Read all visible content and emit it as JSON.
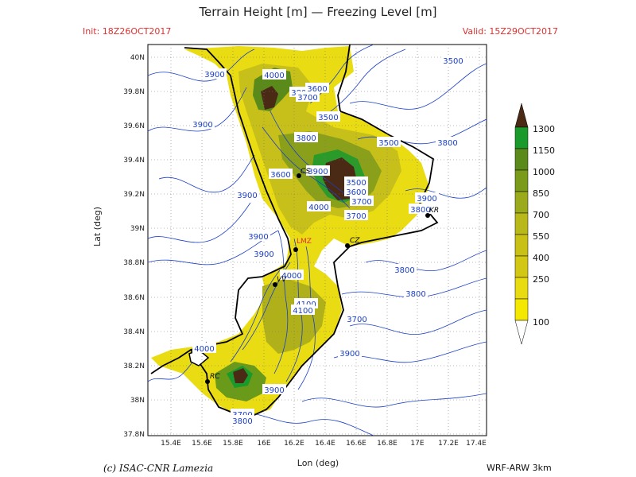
{
  "header": {
    "title": "Terrain Height [m] — Freezing Level [m]",
    "init": "Init: 18Z26OCT2017",
    "valid": "Valid: 15Z29OCT2017"
  },
  "axes": {
    "xlabel": "Lon (deg)",
    "ylabel": "Lat (deg)",
    "x_ticks": [
      "15.4E",
      "15.6E",
      "15.8E",
      "16E",
      "16.2E",
      "16.4E",
      "16.6E",
      "16.8E",
      "17E",
      "17.2E",
      "17.4E"
    ],
    "y_ticks": [
      "40N",
      "39.8N",
      "39.6N",
      "39.4N",
      "39.2N",
      "39N",
      "38.8N",
      "38.6N",
      "38.4N",
      "38.2N",
      "38N",
      "37.8N"
    ]
  },
  "legend": {
    "items": [
      {
        "label": "1300",
        "color": "#4a2a14"
      },
      {
        "label": "1150",
        "color": "#1a9a2a"
      },
      {
        "label": "1000",
        "color": "#5a8a1a"
      },
      {
        "label": "850",
        "color": "#7a9a1a"
      },
      {
        "label": "700",
        "color": "#9aaa1a"
      },
      {
        "label": "550",
        "color": "#b8b81a"
      },
      {
        "label": "400",
        "color": "#d2c814"
      },
      {
        "label": "250",
        "color": "#e8dc10"
      },
      {
        "label": "100",
        "color": "#f4e800"
      }
    ]
  },
  "contour_labels": [
    "3900",
    "4000",
    "3900",
    "3800",
    "3700",
    "3600",
    "3500",
    "3800",
    "3500",
    "3900",
    "3600",
    "3900",
    "3500",
    "3600",
    "3700",
    "3700",
    "4000",
    "3900",
    "3800",
    "3900",
    "3800",
    "3900",
    "4000",
    "4100",
    "4100",
    "3700",
    "3800",
    "3800",
    "3900",
    "4000",
    "3700",
    "3900",
    "3800",
    "3500"
  ],
  "cities": [
    {
      "name": "CS"
    },
    {
      "name": "KR"
    },
    {
      "name": "CZ"
    },
    {
      "name": "VV"
    },
    {
      "name": "RC"
    },
    {
      "name": "LMZ"
    }
  ],
  "footer": {
    "credit": "(c) ISAC-CNR Lamezia",
    "model": "WRF-ARW 3km"
  },
  "colors": {
    "contour": "#1a3fc8",
    "label_text": "#1a3fc8",
    "header_red": "#e03030",
    "coast": "#000000"
  }
}
